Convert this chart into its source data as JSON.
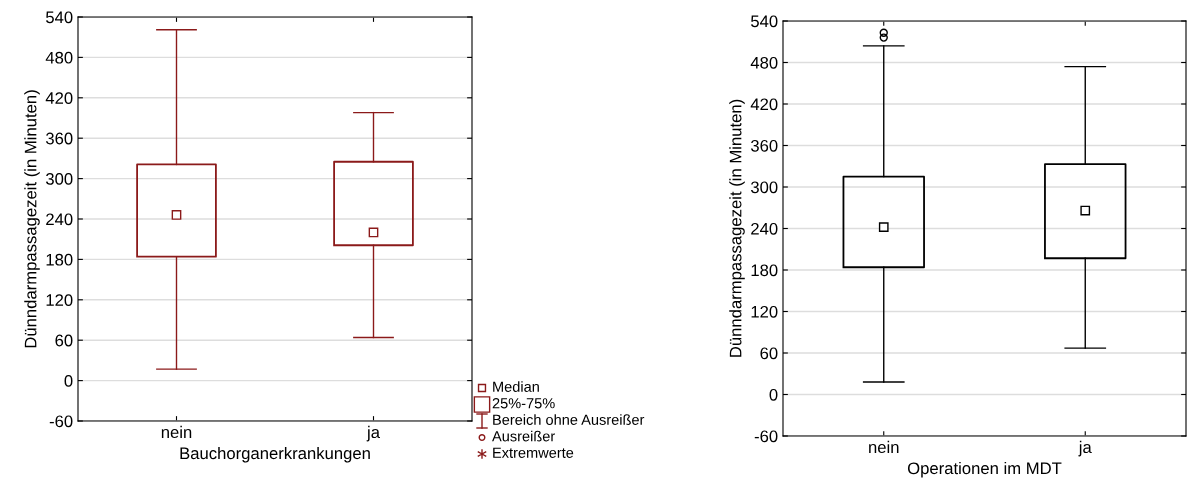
{
  "chart_data": [
    {
      "type": "box",
      "xlabel": "Bauchorganerkrankungen",
      "ylabel": "Dünndarmpassagezeit (in Minuten)",
      "categories": [
        "nein",
        "ja"
      ],
      "color": "#8b1a1a",
      "boxes": [
        {
          "low": 17,
          "q1": 184,
          "median": 246,
          "q3": 321,
          "high": 521
        },
        {
          "low": 64,
          "q1": 201,
          "median": 220,
          "q3": 325,
          "high": 398
        }
      ],
      "ylim": [
        -60,
        540
      ],
      "yticks": [
        -60,
        0,
        60,
        120,
        180,
        240,
        300,
        360,
        420,
        480,
        540
      ],
      "grid": "y",
      "annotations": [
        "Median",
        "25%-75%",
        "Bereich ohne Ausreißer",
        "Ausreißer",
        "Extremwerte"
      ]
    },
    {
      "type": "box",
      "xlabel": "Operationen im MDT",
      "ylabel": "Dünndarmpassagezeit (in Minuten)",
      "categories": [
        "nein",
        "ja"
      ],
      "color": "#000000",
      "boxes": [
        {
          "low": 18,
          "q1": 184,
          "median": 242,
          "q3": 315,
          "high": 504,
          "outliers": [
            516,
            523
          ]
        },
        {
          "low": 67,
          "q1": 197,
          "median": 266,
          "q3": 333,
          "high": 474
        }
      ],
      "ylim": [
        -60,
        540
      ],
      "yticks": [
        -60,
        0,
        60,
        120,
        180,
        240,
        300,
        360,
        420,
        480,
        540
      ],
      "grid": "y"
    }
  ]
}
